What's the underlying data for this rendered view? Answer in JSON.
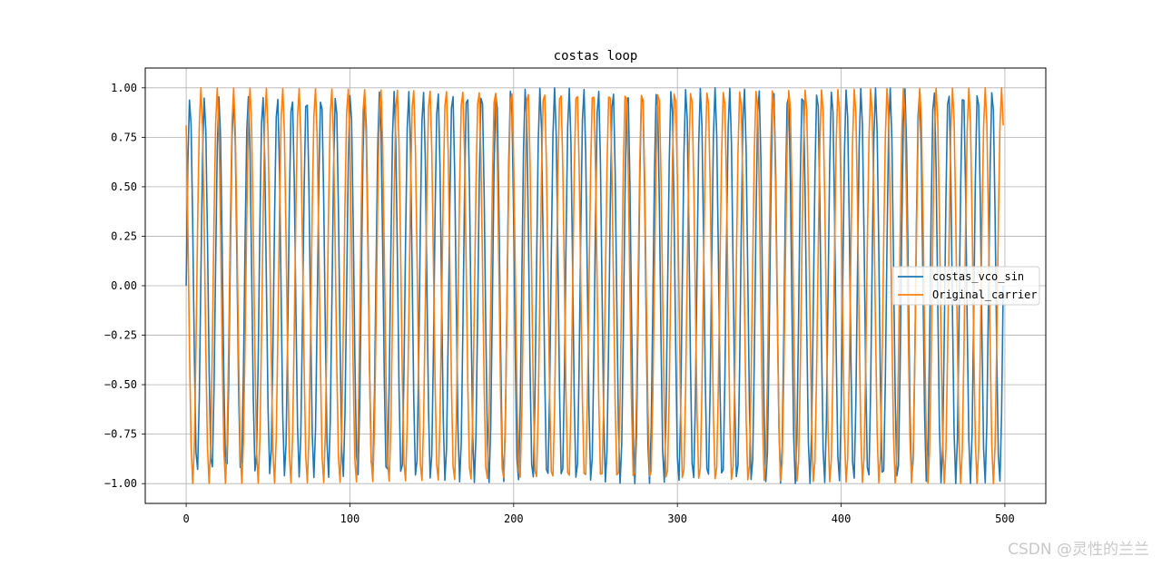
{
  "chart_data": {
    "type": "line",
    "title": "costas loop",
    "xlabel": "",
    "ylabel": "",
    "xlim": [
      -25,
      525
    ],
    "ylim": [
      -1.1,
      1.1
    ],
    "x_ticks": [
      0,
      100,
      200,
      300,
      400,
      500
    ],
    "x_tick_labels": [
      "0",
      "100",
      "200",
      "300",
      "400",
      "500"
    ],
    "y_ticks": [
      1.0,
      0.75,
      0.5,
      0.25,
      0.0,
      -0.25,
      -0.5,
      -0.75,
      -1.0
    ],
    "y_tick_labels": [
      "1.00",
      "0.75",
      "0.50",
      "0.25",
      "0.00",
      "−0.25",
      "−0.50",
      "−0.75",
      "−1.00"
    ],
    "grid": true,
    "legend_position": "center-right",
    "series": [
      {
        "name": "costas_vco_sin",
        "color": "#1f77b4",
        "x_range": [
          0,
          499
        ],
        "samples": 500,
        "description_values": {
          "start": 0.0,
          "cycles": 56,
          "amplitude_start": 0.95,
          "amplitude_end": 1.0,
          "end": -1.0
        }
      },
      {
        "name": "Original_carrier",
        "color": "#ff7f0e",
        "x_range": [
          0,
          499
        ],
        "samples": 500,
        "description_values": {
          "start": 0.81,
          "cycles": 50,
          "amplitude": 1.0,
          "end": 1.0
        }
      }
    ]
  },
  "watermark": "CSDN @灵性的兰兰"
}
